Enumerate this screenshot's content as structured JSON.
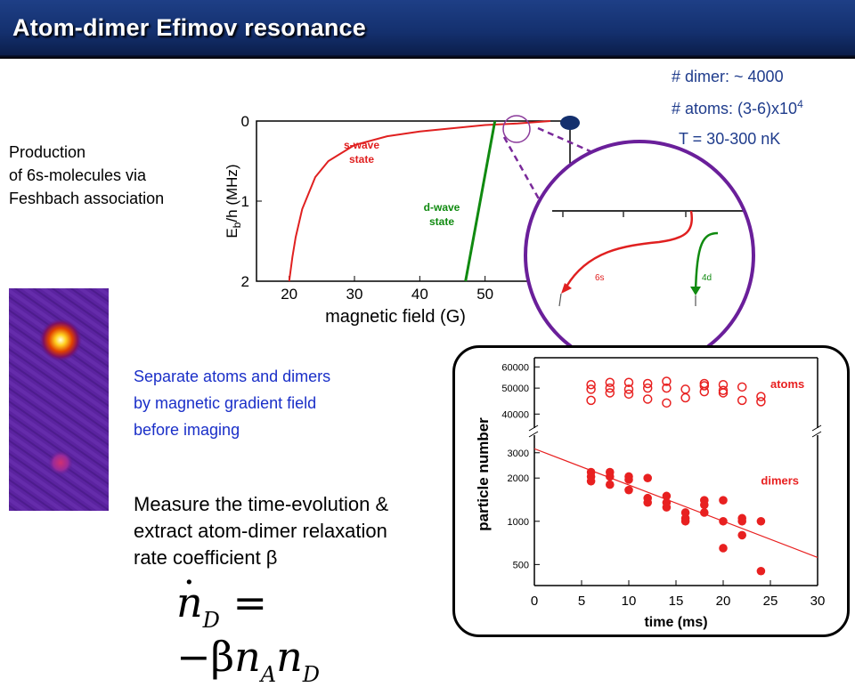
{
  "slide": {
    "title": "Atom-dimer Efimov resonance"
  },
  "stats": {
    "dimer": "# dimer: ~ 4000",
    "atoms_prefix": "# atoms: (3-6)x10",
    "atoms_exp": "4",
    "temperature": "T = 30-300 nK"
  },
  "production_text": [
    "Production",
    "of 6s-molecules via",
    "Feshbach association"
  ],
  "separate_text": [
    "Separate atoms and dimers",
    "by magnetic gradient field",
    "before imaging"
  ],
  "measure_text": [
    "Measure the time-evolution &",
    "extract atom-dimer relaxation",
    "rate coefficient β"
  ],
  "equation": {
    "lhs": "n",
    "lhs_sub": "D",
    "rhs_sym": "= −β",
    "n_a": "n",
    "a_sub": "A",
    "n_d": "n",
    "d_sub": "D"
  },
  "colors": {
    "title_bar": "#14306e",
    "s_wave": "#e02020",
    "d_wave": "#108a10",
    "zoom_circle": "#6a1f9a",
    "data_red": "#e82020",
    "stats_text": "#1f3c8c",
    "separate_text": "#1a2fc8"
  },
  "chart_data": [
    {
      "type": "line",
      "xlabel": "magnetic field (G)",
      "ylabel": "E_b/h (MHz)",
      "ylabel_main": "E",
      "ylabel_sub": "b",
      "ylabel_rest": "/h (MHz)",
      "xlim": [
        15,
        63
      ],
      "ylim": [
        0,
        2
      ],
      "y_inverted": true,
      "xticks": [
        "20",
        "30",
        "40",
        "50"
      ],
      "yticks": [
        "0",
        "1",
        "2"
      ],
      "series": [
        {
          "name": "s-wave state",
          "label_lines": [
            "s-wave",
            "state"
          ],
          "x": [
            20,
            20.5,
            21,
            22,
            24,
            26,
            30,
            35,
            40,
            45,
            50,
            55,
            60
          ],
          "y": [
            2.0,
            1.7,
            1.45,
            1.1,
            0.7,
            0.5,
            0.3,
            0.19,
            0.13,
            0.09,
            0.05,
            0.03,
            0.0
          ]
        },
        {
          "name": "d-wave state",
          "label_lines": [
            "d-wave",
            "state"
          ],
          "x": [
            47,
            51.5
          ],
          "y": [
            2.0,
            0.0
          ]
        }
      ],
      "zoom_inset": {
        "labels": [
          "6s",
          "4d"
        ]
      }
    },
    {
      "type": "scatter",
      "xlabel": "time (ms)",
      "ylabel": "particle number",
      "xlim": [
        0,
        30
      ],
      "xticks": [
        "0",
        "5",
        "10",
        "15",
        "20",
        "25",
        "30"
      ],
      "y_scale": "log, broken axis",
      "yticks_upper": [
        "40000",
        "50000",
        "60000"
      ],
      "yticks_lower": [
        "500",
        "1000",
        "2000",
        "3000"
      ],
      "series": [
        {
          "name": "atoms",
          "marker": "open circle",
          "x": [
            6,
            6,
            6,
            8,
            8,
            8,
            10,
            10,
            10,
            12,
            12,
            12,
            14,
            14,
            14,
            16,
            16,
            18,
            18,
            18,
            20,
            20,
            20,
            22,
            22,
            24,
            24
          ],
          "y": [
            49500,
            45000,
            51500,
            52500,
            48000,
            50000,
            52500,
            49500,
            47500,
            52000,
            50000,
            45500,
            53000,
            50000,
            44000,
            49500,
            46000,
            51000,
            48500,
            52000,
            51500,
            48000,
            49000,
            50500,
            45000,
            46500,
            44500
          ]
        },
        {
          "name": "dimers",
          "marker": "filled circle",
          "x": [
            6,
            6,
            6,
            8,
            8,
            8,
            10,
            10,
            10,
            12,
            12,
            12,
            14,
            14,
            14,
            16,
            16,
            16,
            18,
            18,
            18,
            20,
            20,
            20,
            22,
            22,
            22,
            24,
            24
          ],
          "y": [
            2200,
            2050,
            1900,
            2200,
            2050,
            1800,
            2050,
            1950,
            1650,
            1450,
            1350,
            2000,
            1500,
            1250,
            1350,
            1150,
            1050,
            1000,
            1400,
            1300,
            1150,
            1400,
            1000,
            650,
            1050,
            800,
            1000,
            1000,
            450
          ]
        }
      ],
      "fit_line": {
        "x": [
          0,
          30
        ],
        "y": [
          3200,
          560
        ]
      }
    }
  ]
}
